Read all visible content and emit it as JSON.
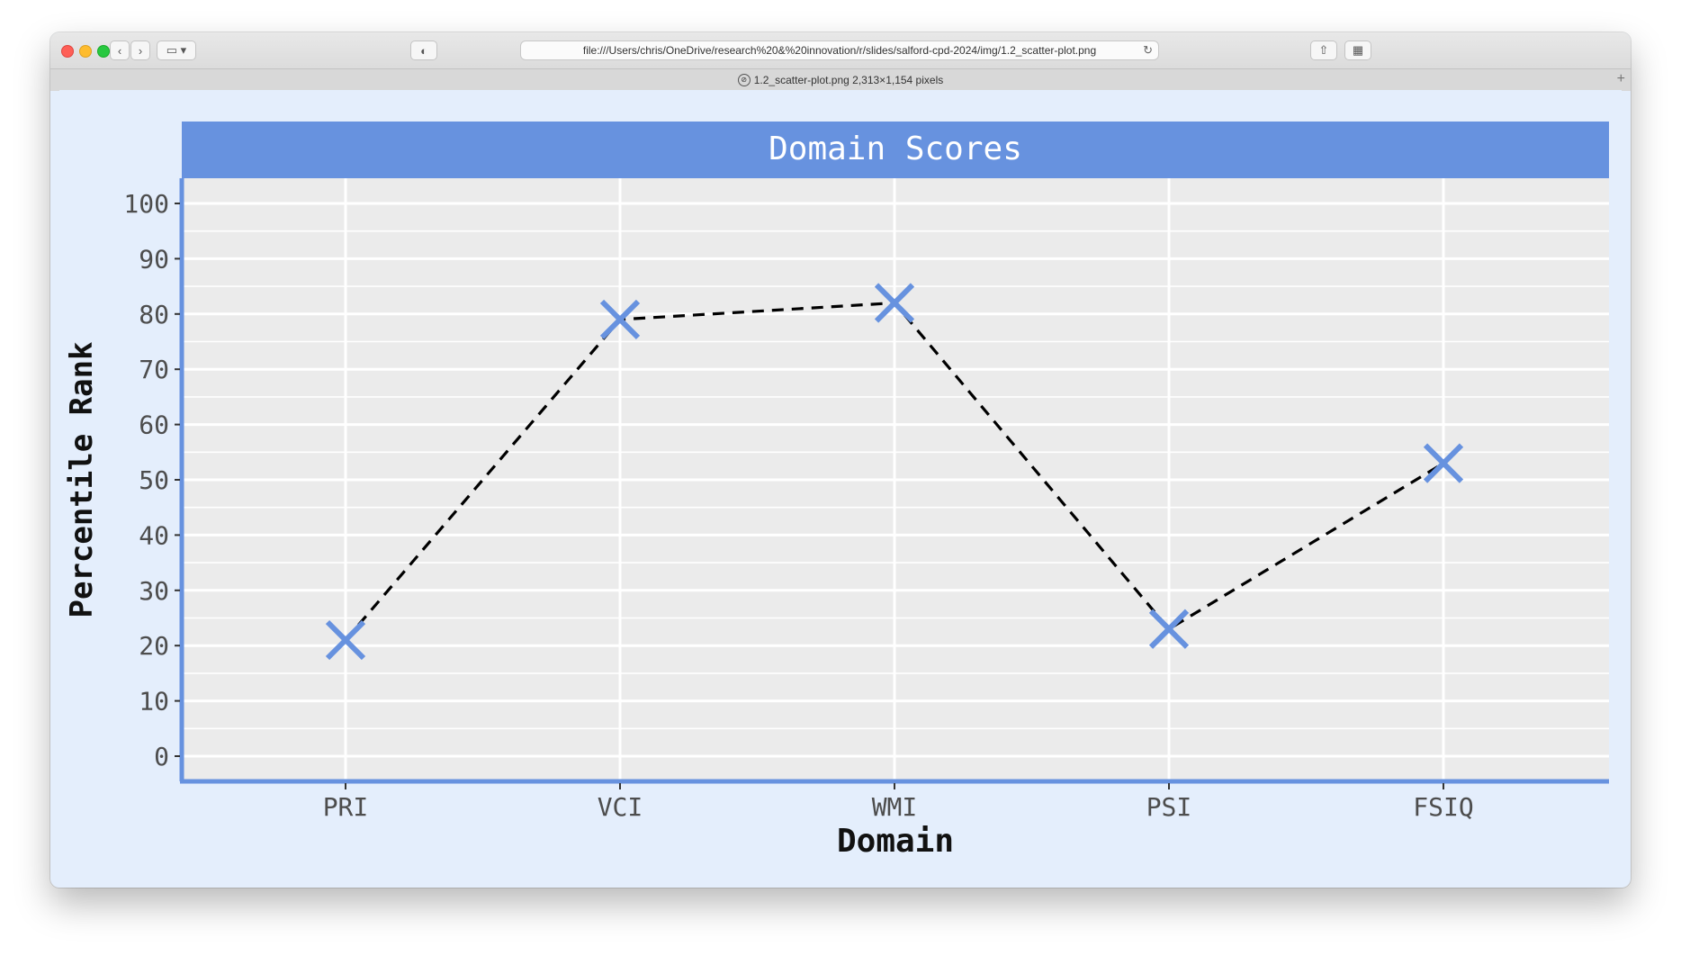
{
  "browser": {
    "url": "file:///Users/chris/OneDrive/research%20&%20innovation/r/slides/salford-cpd-2024/img/1.2_scatter-plot.png",
    "tab_title": "1.2_scatter-plot.png 2,313×1,154 pixels"
  },
  "chart_data": {
    "type": "scatter",
    "title": "Domain Scores",
    "xlabel": "Domain",
    "ylabel": "Percentile Rank",
    "categories": [
      "PRI",
      "VCI",
      "WMI",
      "PSI",
      "FSIQ"
    ],
    "values": [
      21,
      79,
      82,
      23,
      53
    ],
    "ylim": [
      0,
      100
    ],
    "yticks": [
      "0",
      "10",
      "20",
      "30",
      "40",
      "50",
      "60",
      "70",
      "80",
      "90",
      "100"
    ],
    "connect_line": "dashed",
    "marker": "x",
    "grid": true,
    "colors": {
      "accent": "#6792df",
      "panel": "#ebebeb",
      "background": "#e4eefc",
      "line": "#000000"
    }
  }
}
